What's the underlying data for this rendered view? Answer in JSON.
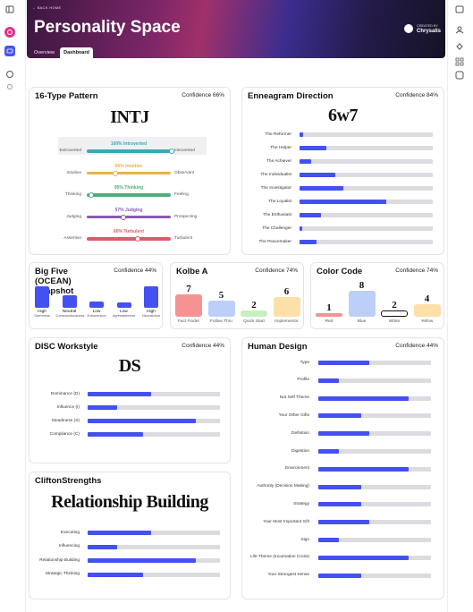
{
  "header": {
    "breadcrumb": "← BACK HOME",
    "title": "Personality Space",
    "created_by": "CREATED BY",
    "creator": "Chrysalis",
    "tabs": [
      "Overview",
      "Dashboard"
    ]
  },
  "type_pattern": {
    "title": "16-Type Pattern",
    "confidence": "Confidence 66%",
    "code": "INTJ",
    "rows": [
      {
        "label": "100% Introverted",
        "value": 100,
        "left": "Extroverted",
        "right": "Introverted",
        "color": "#3aa6b9"
      },
      {
        "label": "66% Intuitive",
        "value": 66,
        "left": "Intuitive",
        "right": "Observant",
        "color": "#e8b34a"
      },
      {
        "label": "95% Thinking",
        "value": 95,
        "left": "Thinking",
        "right": "Feeling",
        "color": "#4caf7a"
      },
      {
        "label": "57% Judging",
        "value": 57,
        "left": "Judging",
        "right": "Prospecting",
        "color": "#8a5bb0"
      },
      {
        "label": "60% Turbulent",
        "value": 60,
        "left": "Assertive",
        "right": "Turbulent",
        "color": "#e05a6a"
      }
    ]
  },
  "enneagram": {
    "title": "Enneagram Direction",
    "confidence": "Confidence 84%",
    "code": "6w7",
    "rows": [
      {
        "name": "The Reformer",
        "value": 3
      },
      {
        "name": "The Helper",
        "value": 20
      },
      {
        "name": "The Achiever",
        "value": 9
      },
      {
        "name": "The Individualist",
        "value": 27
      },
      {
        "name": "The Investigator",
        "value": 33
      },
      {
        "name": "The Loyalist",
        "value": 65
      },
      {
        "name": "The Enthusiast",
        "value": 16
      },
      {
        "name": "The Challenger",
        "value": 2
      },
      {
        "name": "The Peacemaker",
        "value": 13
      }
    ]
  },
  "big_five": {
    "title": "Big Five (OCEAN) Snapshot",
    "confidence": "Confidence 44%",
    "rows": [
      {
        "level": "High",
        "trait": "Openness",
        "value": 100
      },
      {
        "level": "Neutral",
        "trait": "Conscientiousness",
        "value": 60
      },
      {
        "level": "Low",
        "trait": "Extraversion",
        "value": 30
      },
      {
        "level": "Low",
        "trait": "Agreeableness",
        "value": 25
      },
      {
        "level": "High",
        "trait": "Neuroticism",
        "value": 100
      }
    ]
  },
  "kolbe": {
    "title": "Kolbe A",
    "confidence": "Confidence 74%",
    "rows": [
      {
        "name": "Fact Finder",
        "value": 7,
        "color": "#f59393"
      },
      {
        "name": "Follow Thru",
        "value": 5,
        "color": "#bccff8"
      },
      {
        "name": "Quick Start",
        "value": 2,
        "color": "#c6f0bd"
      },
      {
        "name": "Implementor",
        "value": 6,
        "color": "#fde0a8"
      }
    ]
  },
  "color_code": {
    "title": "Color Code",
    "confidence": "Confidence 74%",
    "rows": [
      {
        "name": "Red",
        "value": 1,
        "color": "#f59393"
      },
      {
        "name": "Blue",
        "value": 8,
        "color": "#bccff8"
      },
      {
        "name": "White",
        "value": 2,
        "color": "#ffffff"
      },
      {
        "name": "Yellow",
        "value": 4,
        "color": "#fde0a8"
      }
    ]
  },
  "disc": {
    "title": "DISC Workstyle",
    "confidence": "Confidence 44%",
    "code": "DS",
    "rows": [
      {
        "name": "Dominance (D)",
        "value": 48
      },
      {
        "name": "Influence (I)",
        "value": 22
      },
      {
        "name": "Steadiness (S)",
        "value": 82
      },
      {
        "name": "Compliance (C)",
        "value": 42
      }
    ]
  },
  "human_design": {
    "title": "Human Design",
    "confidence": "Confidence 44%",
    "rows": [
      {
        "name": "Type",
        "value": 45
      },
      {
        "name": "Profile",
        "value": 18
      },
      {
        "name": "Not Self Theme",
        "value": 80
      },
      {
        "name": "Your Other Gifts",
        "value": 38
      },
      {
        "name": "Definition",
        "value": 45
      },
      {
        "name": "Digestion",
        "value": 18
      },
      {
        "name": "Environment",
        "value": 80
      },
      {
        "name": "Authority (Decision Making)",
        "value": 38
      },
      {
        "name": "Strategy",
        "value": 38
      },
      {
        "name": "Your Most Important Gift",
        "value": 45
      },
      {
        "name": "Sign",
        "value": 18
      },
      {
        "name": "Life Theme (Incarnation Cross)",
        "value": 80
      },
      {
        "name": "Your Strongest Sense",
        "value": 38
      }
    ]
  },
  "clifton": {
    "title": "CliftonStrengths",
    "code": "Relationship Building",
    "rows": [
      {
        "name": "Executing",
        "value": 48
      },
      {
        "name": "Influencing",
        "value": 22
      },
      {
        "name": "Relationship Building",
        "value": 82
      },
      {
        "name": "Strategic Thinking",
        "value": 42
      }
    ]
  }
}
